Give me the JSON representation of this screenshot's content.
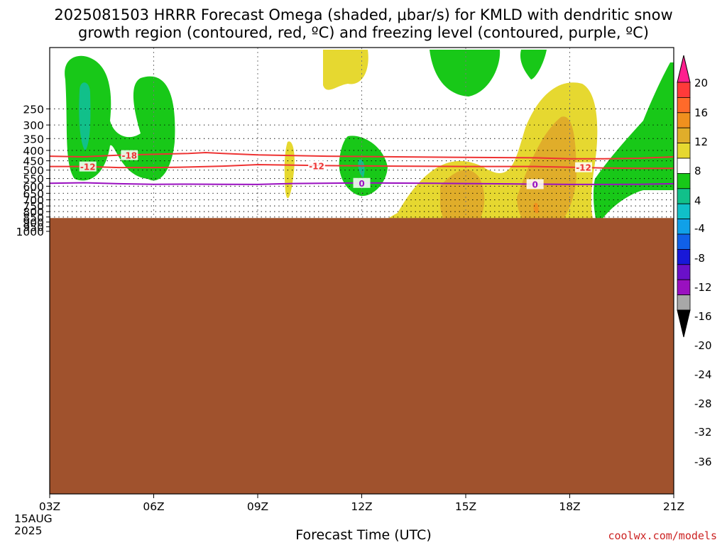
{
  "title_line1": "2025081503 HRRR Forecast Omega (shaded, μbar/s) for KMLD with dendritic snow",
  "title_line2": "growth region (contoured, red, ºC) and freezing level (contoured, purple, ºC)",
  "xlabel": "Forecast Time (UTC)",
  "credit": "coolwx.com/models",
  "date_line1": "15AUG",
  "date_line2": "2025",
  "chart_data": {
    "type": "heatmap",
    "x_ticks": [
      "03Z",
      "06Z",
      "09Z",
      "12Z",
      "15Z",
      "18Z",
      "21Z"
    ],
    "x_range_hours": [
      3,
      21
    ],
    "y_ticks": [
      250,
      300,
      350,
      400,
      450,
      500,
      550,
      600,
      650,
      700,
      750,
      800,
      850,
      900,
      950,
      1000
    ],
    "y_range_mb": [
      200,
      1050
    ],
    "y_scale": "log-pressure",
    "ground_level_mb": 860,
    "colorbar": {
      "labels": [
        "20",
        "16",
        "12",
        "8",
        "4",
        "-4",
        "-8",
        "-12",
        "-16",
        "-20",
        "-24",
        "-28",
        "-32",
        "-36"
      ],
      "colors": [
        "#ff1f8e",
        "#ff3a3a",
        "#ff6a2a",
        "#f0901e",
        "#e0ad2a",
        "#e6d830",
        "#ffffff",
        "#18c818",
        "#11c08a",
        "#10c0c8",
        "#10a0e8",
        "#1060e8",
        "#1818d8",
        "#6a10c8",
        "#9a10c0",
        "#a8a8a8",
        "#000000"
      ]
    },
    "omega_fill_colors": {
      "green": "#18c818",
      "teal": "#11c08a",
      "cyan": "#10c0c8",
      "blue": "#10a0e8",
      "purple": "#9a10c0",
      "gray": "#a8a8a8",
      "black": "#000000",
      "yellow": "#e6d830",
      "orange_light": "#e0ad2a",
      "orange": "#f0901e",
      "red": "#ff3a3a",
      "magenta": "#ff1f8e"
    },
    "contours": [
      {
        "name": "-18",
        "color": "#ee3333",
        "points": [
          [
            3,
            427
          ],
          [
            4,
            430
          ],
          [
            5,
            422
          ],
          [
            6,
            418
          ],
          [
            7,
            414
          ],
          [
            7.5,
            410
          ],
          [
            8,
            414
          ],
          [
            9,
            421
          ],
          [
            11,
            427
          ],
          [
            13,
            430
          ],
          [
            15,
            433
          ],
          [
            17,
            435
          ],
          [
            18,
            440
          ],
          [
            19,
            440
          ],
          [
            20,
            437
          ],
          [
            21,
            430
          ]
        ]
      },
      {
        "name": "-12",
        "color": "#ee3333",
        "points": [
          [
            3,
            480
          ],
          [
            4,
            480
          ],
          [
            5,
            486
          ],
          [
            6,
            486
          ],
          [
            7,
            483
          ],
          [
            8,
            478
          ],
          [
            9,
            470
          ],
          [
            11,
            475
          ],
          [
            13,
            478
          ],
          [
            15,
            480
          ],
          [
            17,
            480
          ],
          [
            18,
            484
          ],
          [
            19,
            488
          ],
          [
            20,
            490
          ],
          [
            21,
            490
          ]
        ]
      },
      {
        "name": "0",
        "color": "#9a10c0",
        "points": [
          [
            3,
            580
          ],
          [
            4,
            577
          ],
          [
            5,
            583
          ],
          [
            6,
            587
          ],
          [
            7,
            586
          ],
          [
            8,
            587
          ],
          [
            9,
            588
          ],
          [
            10,
            582
          ],
          [
            12,
            578
          ],
          [
            14,
            580
          ],
          [
            16,
            584
          ],
          [
            17,
            586
          ],
          [
            18,
            588
          ],
          [
            19,
            588
          ],
          [
            20,
            587
          ],
          [
            21,
            583
          ]
        ]
      }
    ]
  }
}
